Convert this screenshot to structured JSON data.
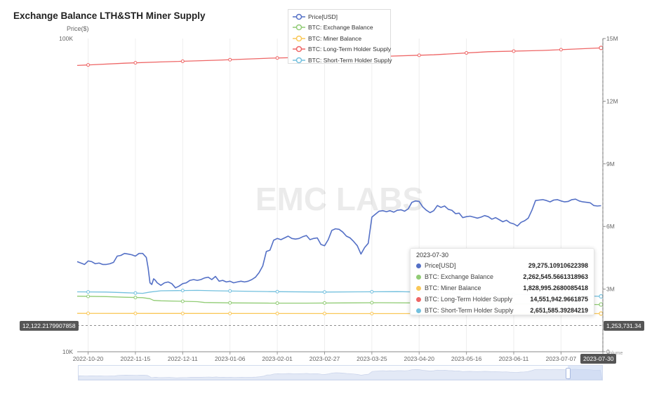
{
  "title": "Exchange Balance LTH&STH Miner Supply",
  "y_left_unit": "Price($)",
  "y_right_unit": "Volume",
  "watermark": "EMC LABS",
  "legend": [
    {
      "label": "Price[USD]",
      "color": "#5470c6"
    },
    {
      "label": "BTC: Exchange Balance",
      "color": "#91cc75"
    },
    {
      "label": "BTC: Miner Balance",
      "color": "#fac858"
    },
    {
      "label": "BTC: Long-Term Holder Supply",
      "color": "#ee6666"
    },
    {
      "label": "BTC: Short-Term Holder Supply",
      "color": "#73c0de"
    }
  ],
  "tooltip": {
    "date": "2023-07-30",
    "rows": [
      {
        "name": "Price[USD]",
        "value": "29,275.10910622398",
        "color": "#5470c6"
      },
      {
        "name": "BTC: Exchange Balance",
        "value": "2,262,545.5661318963",
        "color": "#91cc75"
      },
      {
        "name": "BTC: Miner Balance",
        "value": "1,828,995.2680085418",
        "color": "#fac858"
      },
      {
        "name": "BTC: Long-Term Holder Supply",
        "value": "14,551,942.9661875",
        "color": "#ee6666"
      },
      {
        "name": "BTC: Short-Term Holder Supply",
        "value": "2,651,585.39284219",
        "color": "#73c0de"
      }
    ]
  },
  "axis_pointer": {
    "left_value": "12,122.2179907858",
    "right_value": "1,253,731.34",
    "x_value": "2023-07-30",
    "y_left": 12122.2179907858
  },
  "chart_data": {
    "type": "line",
    "title": "Exchange Balance LTH&STH Miner Supply",
    "x_tick_labels": [
      "2022-10-20",
      "2022-11-15",
      "2022-12-11",
      "2023-01-06",
      "2023-02-01",
      "2023-02-27",
      "2023-03-25",
      "2023-04-20",
      "2023-05-16",
      "2023-06-11",
      "2023-07-07",
      "2023-07-30"
    ],
    "x_day_range": [
      -6,
      283
    ],
    "y_left": {
      "label": "Price($)",
      "scale": "log",
      "min": 10000,
      "max": 100000,
      "ticks": [
        "10K",
        "100K"
      ]
    },
    "y_right": {
      "label": "Volume",
      "scale": "linear",
      "min": 0,
      "max": 15000000,
      "ticks": [
        "0",
        "3M",
        "6M",
        "9M",
        "12M",
        "15M"
      ]
    },
    "series": [
      {
        "name": "Price[USD]",
        "axis": "left",
        "color": "#5470c6",
        "points": [
          [
            -6,
            19400
          ],
          [
            -4,
            19200
          ],
          [
            -2,
            19000
          ],
          [
            0,
            19500
          ],
          [
            2,
            19400
          ],
          [
            4,
            19100
          ],
          [
            6,
            19200
          ],
          [
            8,
            19000
          ],
          [
            10,
            19000
          ],
          [
            12,
            19100
          ],
          [
            14,
            19300
          ],
          [
            16,
            20200
          ],
          [
            18,
            20300
          ],
          [
            20,
            20600
          ],
          [
            22,
            20500
          ],
          [
            24,
            20400
          ],
          [
            26,
            20200
          ],
          [
            28,
            20600
          ],
          [
            30,
            20600
          ],
          [
            32,
            20000
          ],
          [
            33,
            18500
          ],
          [
            34,
            16600
          ],
          [
            35,
            16400
          ],
          [
            36,
            17100
          ],
          [
            37,
            16900
          ],
          [
            38,
            16600
          ],
          [
            40,
            16300
          ],
          [
            42,
            16600
          ],
          [
            44,
            16700
          ],
          [
            46,
            16500
          ],
          [
            48,
            16000
          ],
          [
            50,
            16200
          ],
          [
            52,
            16500
          ],
          [
            54,
            16600
          ],
          [
            56,
            16900
          ],
          [
            58,
            17000
          ],
          [
            60,
            16900
          ],
          [
            62,
            17000
          ],
          [
            64,
            17200
          ],
          [
            66,
            17300
          ],
          [
            68,
            17000
          ],
          [
            70,
            17400
          ],
          [
            72,
            16800
          ],
          [
            74,
            16900
          ],
          [
            76,
            16700
          ],
          [
            78,
            16800
          ],
          [
            80,
            16600
          ],
          [
            82,
            16700
          ],
          [
            84,
            16800
          ],
          [
            86,
            16700
          ],
          [
            88,
            16800
          ],
          [
            90,
            17000
          ],
          [
            92,
            17300
          ],
          [
            94,
            17900
          ],
          [
            96,
            18800
          ],
          [
            98,
            20900
          ],
          [
            100,
            21100
          ],
          [
            102,
            22700
          ],
          [
            104,
            23000
          ],
          [
            106,
            22800
          ],
          [
            108,
            23100
          ],
          [
            110,
            23400
          ],
          [
            112,
            23000
          ],
          [
            114,
            22900
          ],
          [
            116,
            23000
          ],
          [
            118,
            23300
          ],
          [
            120,
            23500
          ],
          [
            122,
            22800
          ],
          [
            124,
            23000
          ],
          [
            126,
            23100
          ],
          [
            128,
            22000
          ],
          [
            130,
            21800
          ],
          [
            132,
            22800
          ],
          [
            134,
            24400
          ],
          [
            136,
            24700
          ],
          [
            138,
            24600
          ],
          [
            140,
            24100
          ],
          [
            142,
            23400
          ],
          [
            144,
            23100
          ],
          [
            146,
            22500
          ],
          [
            148,
            21800
          ],
          [
            150,
            20500
          ],
          [
            152,
            21500
          ],
          [
            154,
            22200
          ],
          [
            156,
            26900
          ],
          [
            158,
            27500
          ],
          [
            160,
            28100
          ],
          [
            162,
            28200
          ],
          [
            164,
            28000
          ],
          [
            166,
            28200
          ],
          [
            168,
            27900
          ],
          [
            170,
            28300
          ],
          [
            172,
            28400
          ],
          [
            174,
            28100
          ],
          [
            176,
            28600
          ],
          [
            178,
            30000
          ],
          [
            180,
            30300
          ],
          [
            182,
            30200
          ],
          [
            184,
            29000
          ],
          [
            186,
            28300
          ],
          [
            188,
            27800
          ],
          [
            190,
            28200
          ],
          [
            192,
            29300
          ],
          [
            194,
            28900
          ],
          [
            196,
            29200
          ],
          [
            198,
            28500
          ],
          [
            200,
            28300
          ],
          [
            202,
            27600
          ],
          [
            204,
            27700
          ],
          [
            206,
            26800
          ],
          [
            208,
            27000
          ],
          [
            210,
            27100
          ],
          [
            212,
            26900
          ],
          [
            214,
            26700
          ],
          [
            216,
            26900
          ],
          [
            218,
            27200
          ],
          [
            220,
            27000
          ],
          [
            222,
            26500
          ],
          [
            224,
            26800
          ],
          [
            226,
            26400
          ],
          [
            228,
            26000
          ],
          [
            230,
            26300
          ],
          [
            232,
            25800
          ],
          [
            234,
            25600
          ],
          [
            236,
            25200
          ],
          [
            238,
            25900
          ],
          [
            240,
            26200
          ],
          [
            242,
            26700
          ],
          [
            244,
            28300
          ],
          [
            246,
            30400
          ],
          [
            248,
            30500
          ],
          [
            250,
            30600
          ],
          [
            252,
            30400
          ],
          [
            254,
            30100
          ],
          [
            256,
            30500
          ],
          [
            258,
            30600
          ],
          [
            260,
            30300
          ],
          [
            262,
            30100
          ],
          [
            264,
            30200
          ],
          [
            266,
            30600
          ],
          [
            268,
            30700
          ],
          [
            270,
            30300
          ],
          [
            272,
            30100
          ],
          [
            274,
            30000
          ],
          [
            276,
            29900
          ],
          [
            278,
            29300
          ],
          [
            280,
            29200
          ],
          [
            282,
            29275
          ]
        ]
      },
      {
        "name": "BTC: Exchange Balance",
        "axis": "right",
        "color": "#91cc75",
        "points": [
          [
            -6,
            2660000
          ],
          [
            10,
            2640000
          ],
          [
            20,
            2610000
          ],
          [
            30,
            2590000
          ],
          [
            34,
            2540000
          ],
          [
            36,
            2460000
          ],
          [
            40,
            2440000
          ],
          [
            50,
            2420000
          ],
          [
            60,
            2400000
          ],
          [
            64,
            2360000
          ],
          [
            80,
            2340000
          ],
          [
            100,
            2330000
          ],
          [
            120,
            2330000
          ],
          [
            140,
            2340000
          ],
          [
            160,
            2350000
          ],
          [
            180,
            2340000
          ],
          [
            200,
            2320000
          ],
          [
            220,
            2300000
          ],
          [
            240,
            2290000
          ],
          [
            260,
            2270000
          ],
          [
            282,
            2262545
          ]
        ]
      },
      {
        "name": "BTC: Miner Balance",
        "axis": "right",
        "color": "#fac858",
        "points": [
          [
            -6,
            1840000
          ],
          [
            40,
            1835000
          ],
          [
            100,
            1832000
          ],
          [
            160,
            1830000
          ],
          [
            220,
            1829500
          ],
          [
            282,
            1828995
          ]
        ]
      },
      {
        "name": "BTC: Long-Term Holder Supply",
        "axis": "right",
        "color": "#ee6666",
        "points": [
          [
            -6,
            13710000
          ],
          [
            20,
            13820000
          ],
          [
            40,
            13880000
          ],
          [
            70,
            13960000
          ],
          [
            100,
            14060000
          ],
          [
            130,
            14120000
          ],
          [
            160,
            14140000
          ],
          [
            190,
            14220000
          ],
          [
            220,
            14370000
          ],
          [
            250,
            14430000
          ],
          [
            282,
            14551942
          ]
        ]
      },
      {
        "name": "BTC: Short-Term Holder Supply",
        "axis": "right",
        "color": "#73c0de",
        "points": [
          [
            -6,
            2870000
          ],
          [
            10,
            2860000
          ],
          [
            20,
            2830000
          ],
          [
            30,
            2800000
          ],
          [
            34,
            2860000
          ],
          [
            40,
            2920000
          ],
          [
            60,
            2940000
          ],
          [
            70,
            2920000
          ],
          [
            100,
            2880000
          ],
          [
            130,
            2860000
          ],
          [
            150,
            2870000
          ],
          [
            170,
            2880000
          ],
          [
            190,
            2850000
          ],
          [
            210,
            2800000
          ],
          [
            230,
            2760000
          ],
          [
            250,
            2720000
          ],
          [
            270,
            2690000
          ],
          [
            282,
            2651585
          ]
        ]
      }
    ]
  }
}
